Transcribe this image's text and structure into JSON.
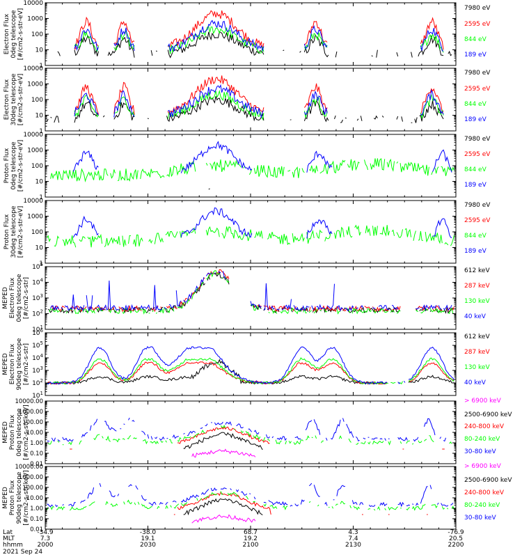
{
  "figure": {
    "date_label": "2021 Sep 24",
    "time_label_rows": [
      "Lat",
      "MLT",
      "hhmm"
    ],
    "lat_ticks": [
      "-34.9",
      "-38.0",
      "68.7",
      "4.3",
      "-76.9"
    ],
    "mlt_ticks": [
      "7.3",
      "19.1",
      "19.2",
      "7.4",
      "20.5"
    ],
    "hhmm_ticks": [
      "2000",
      "2030",
      "2100",
      "2130",
      "2200"
    ],
    "tick_minutes": [
      0,
      30,
      60,
      90,
      120
    ],
    "time_range_minutes": [
      0,
      120
    ]
  },
  "colors": {
    "black": "#000000",
    "red": "#ff0000",
    "green": "#00ff00",
    "blue": "#0000ff",
    "magenta": "#ff00ff"
  },
  "chart_data": [
    {
      "type": "line",
      "ylabel": [
        "Electron Flux",
        "0deg telescope",
        "[#/cm2-s-str-eV]"
      ],
      "yscale": "log",
      "ylim": [
        1,
        10000
      ],
      "yticks": [
        "1",
        "10",
        "100",
        "1000",
        "10000"
      ],
      "series": [
        {
          "name": "7980 eV",
          "color": "#000000"
        },
        {
          "name": "2595 eV",
          "color": "#ff0000"
        },
        {
          "name": "844 eV",
          "color": "#00ff00"
        },
        {
          "name": "189 eV",
          "color": "#0000ff"
        }
      ]
    },
    {
      "type": "line",
      "ylabel": [
        "Electron Flux",
        "30deg telescope",
        "[#/cm2-s-str-eV]"
      ],
      "yscale": "log",
      "ylim": [
        1,
        10000
      ],
      "yticks": [
        "1",
        "10",
        "100",
        "1000",
        "10000"
      ],
      "series": [
        {
          "name": "7980 eV",
          "color": "#000000"
        },
        {
          "name": "2595 eV",
          "color": "#ff0000"
        },
        {
          "name": "844 eV",
          "color": "#00ff00"
        },
        {
          "name": "189 eV",
          "color": "#0000ff"
        }
      ]
    },
    {
      "type": "line",
      "ylabel": [
        "Proton Flux",
        "0deg telescope",
        "[#/cm2-s-str-eV]"
      ],
      "yscale": "log",
      "ylim": [
        1,
        10000
      ],
      "yticks": [
        "1",
        "10",
        "100",
        "1000",
        "10000"
      ],
      "series": [
        {
          "name": "7980 eV",
          "color": "#000000"
        },
        {
          "name": "2595 eV",
          "color": "#ff0000"
        },
        {
          "name": "844 eV",
          "color": "#00ff00"
        },
        {
          "name": "189 eV",
          "color": "#0000ff"
        }
      ]
    },
    {
      "type": "line",
      "ylabel": [
        "Proton Flux",
        "30deg telescope",
        "[#/cm2-s-str-eV]"
      ],
      "yscale": "log",
      "ylim": [
        1,
        10000
      ],
      "yticks": [
        "1",
        "10",
        "100",
        "1000",
        "10000"
      ],
      "series": [
        {
          "name": "7980 eV",
          "color": "#000000"
        },
        {
          "name": "2595 eV",
          "color": "#ff0000"
        },
        {
          "name": "844 eV",
          "color": "#00ff00"
        },
        {
          "name": "189 eV",
          "color": "#0000ff"
        }
      ]
    },
    {
      "type": "line",
      "ylabel": [
        "MEPED",
        "Electron Flux",
        "0deg telescope",
        "[#/cm2-s-str]"
      ],
      "yscale": "log",
      "ylim": [
        10,
        100000
      ],
      "yticks": [
        "10^1",
        "10^2",
        "10^3",
        "10^4",
        "10^5"
      ],
      "series": [
        {
          "name": "612 keV",
          "color": "#000000"
        },
        {
          "name": "287 keV",
          "color": "#ff0000"
        },
        {
          "name": "130 keV",
          "color": "#00ff00"
        },
        {
          "name": "40 keV",
          "color": "#0000ff"
        }
      ]
    },
    {
      "type": "line",
      "ylabel": [
        "MEPED",
        "Electron Flux",
        "90deg telescope",
        "[#/cm2-s-str]"
      ],
      "yscale": "log",
      "ylim": [
        10,
        1000000
      ],
      "yticks": [
        "10^1",
        "10^2",
        "10^3",
        "10^4",
        "10^5",
        "10^6"
      ],
      "series": [
        {
          "name": "612 keV",
          "color": "#000000"
        },
        {
          "name": "287 keV",
          "color": "#ff0000"
        },
        {
          "name": "130 keV",
          "color": "#00ff00"
        },
        {
          "name": "40 keV",
          "color": "#0000ff"
        }
      ]
    },
    {
      "type": "line",
      "ylabel": [
        "MEPED",
        "Proton Flux",
        "0deg telescope",
        "[#/cm2-s-str-keV]"
      ],
      "yscale": "log",
      "ylim": [
        0.01,
        10000
      ],
      "yticks": [
        "0.01",
        "0.10",
        "1.00",
        "10.00",
        "100.00",
        "1000.00",
        "10000.00"
      ],
      "series": [
        {
          "name": "> 6900 keV",
          "color": "#ff00ff"
        },
        {
          "name": "2500-6900 keV",
          "color": "#000000"
        },
        {
          "name": "240-800 keV",
          "color": "#ff0000"
        },
        {
          "name": "80-240 keV",
          "color": "#00ff00"
        },
        {
          "name": "30-80 keV",
          "color": "#0000ff"
        }
      ]
    },
    {
      "type": "line",
      "ylabel": [
        "MEPED",
        "Proton Flux",
        "90deg telescope",
        "[#/cm2-s-str-keV]"
      ],
      "yscale": "log",
      "ylim": [
        0.01,
        10000
      ],
      "yticks": [
        "0.01",
        "0.10",
        "1.00",
        "10.00",
        "100.00",
        "1000.00",
        "10000.00"
      ],
      "series": [
        {
          "name": "> 6900 keV",
          "color": "#ff00ff"
        },
        {
          "name": "2500-6900 keV",
          "color": "#000000"
        },
        {
          "name": "240-800 keV",
          "color": "#ff0000"
        },
        {
          "name": "80-240 keV",
          "color": "#00ff00"
        },
        {
          "name": "30-80 keV",
          "color": "#0000ff"
        }
      ]
    }
  ]
}
